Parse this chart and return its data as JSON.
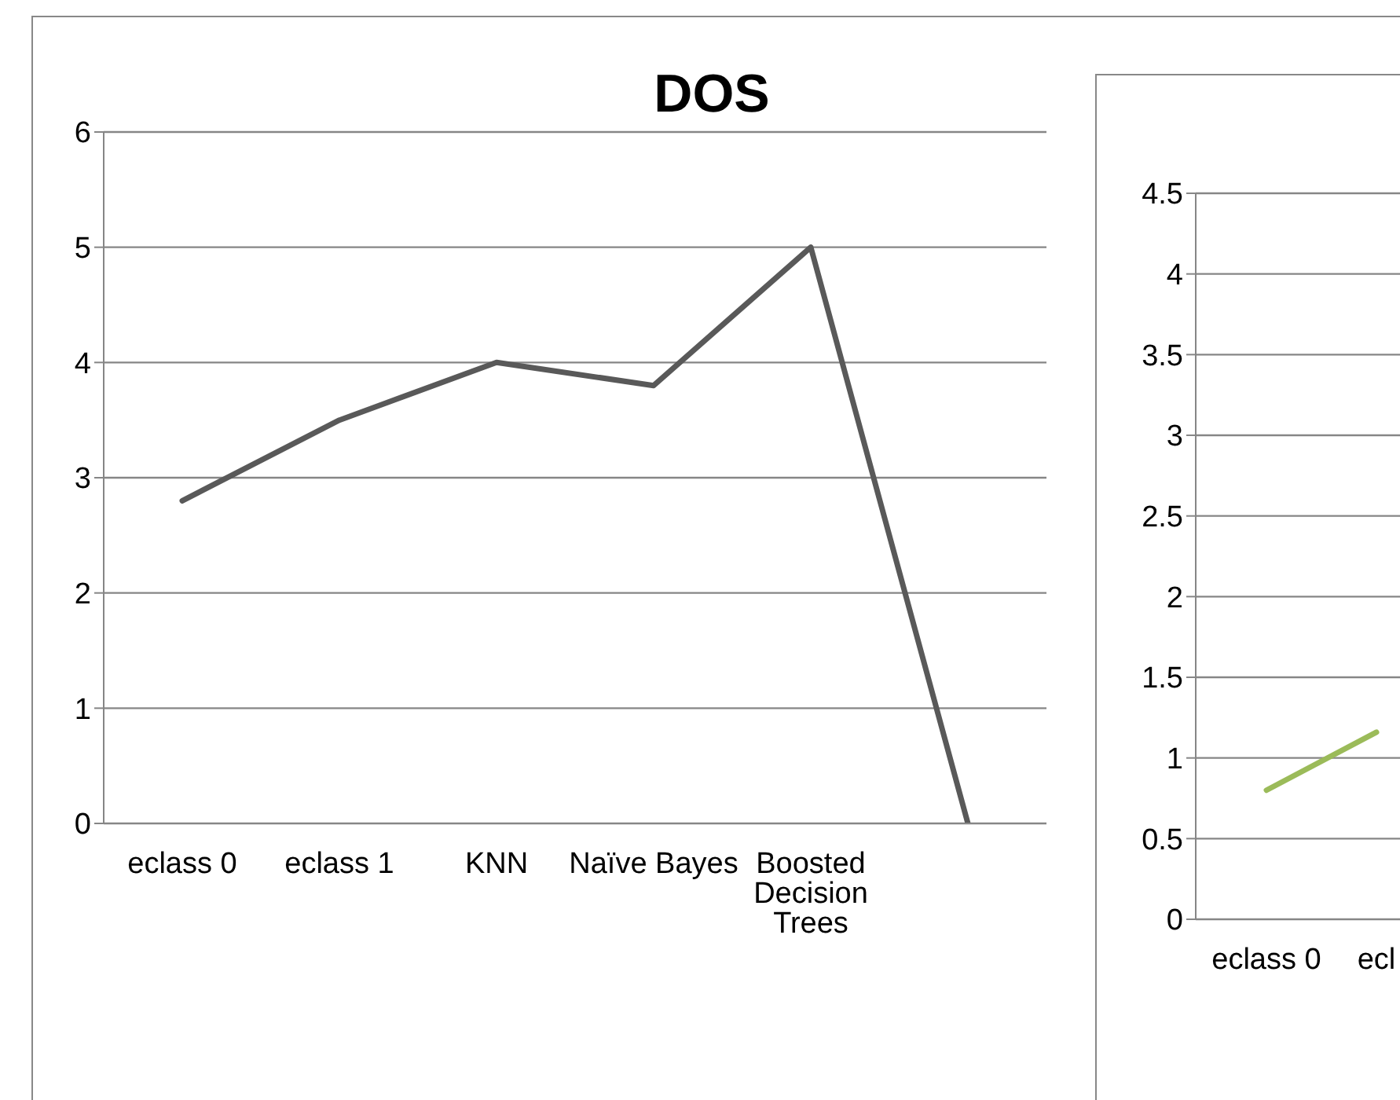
{
  "chart_data": [
    {
      "type": "line",
      "title": "DOS",
      "categories": [
        "eclass 0",
        "eclass 1",
        "KNN",
        "Naïve Bayes",
        "Boosted Decision Trees",
        null
      ],
      "values": [
        2.8,
        3.5,
        4.0,
        3.8,
        5.0,
        0
      ],
      "color": "#595959",
      "ylim": [
        0,
        6
      ],
      "yticks": [
        0,
        1,
        2,
        3,
        4,
        5,
        6
      ],
      "grid": "y",
      "legend": false,
      "marker": "none"
    },
    {
      "type": "line",
      "categories": [
        "eclass 0",
        "ecl"
      ],
      "values": [
        0.8,
        1.16
      ],
      "color": "#9bbb59",
      "ylim": [
        0,
        4.5
      ],
      "yticks": [
        0,
        0.5,
        1,
        1.5,
        2,
        2.5,
        3,
        3.5,
        4,
        4.5
      ],
      "grid": "y",
      "legend": false,
      "marker": "none"
    }
  ]
}
